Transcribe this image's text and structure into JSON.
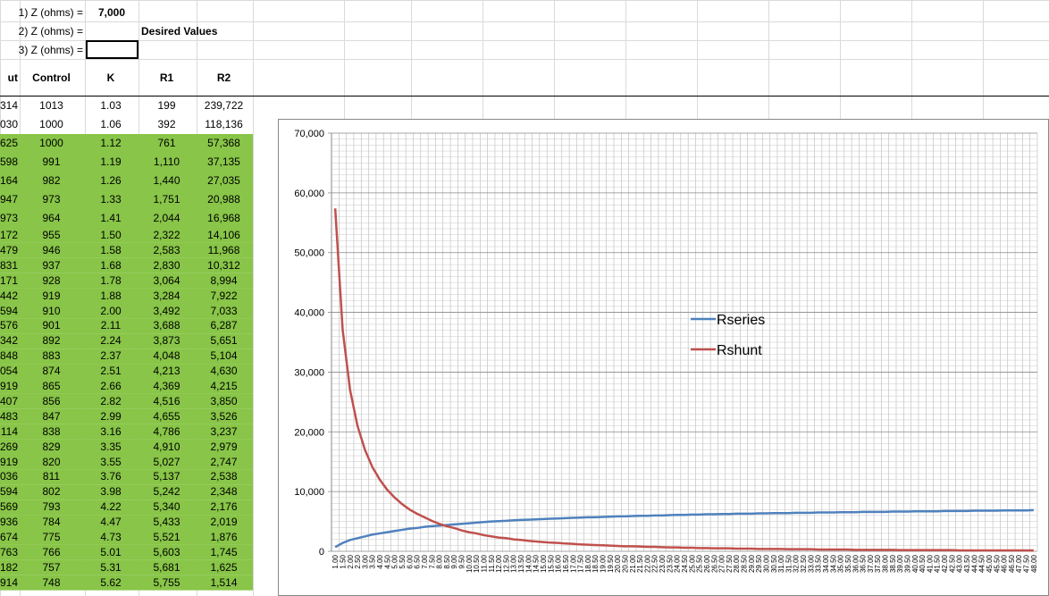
{
  "inputs": [
    {
      "label": "1) Z (ohms) =",
      "value": "7,000"
    },
    {
      "label": "2) Z (ohms) ="
    },
    {
      "label": "3) Z (ohms) ="
    }
  ],
  "desired_values": "Desired Values",
  "table": {
    "headers": [
      "ut",
      "Control",
      "K",
      "R1",
      "R2"
    ],
    "rows": [
      [
        "314",
        "1013",
        "1.03",
        "199",
        "239,722"
      ],
      [
        "030",
        "1000",
        "1.06",
        "392",
        "118,136"
      ],
      [
        "625",
        "1000",
        "1.12",
        "761",
        "57,368"
      ],
      [
        "598",
        "991",
        "1.19",
        "1,110",
        "37,135"
      ],
      [
        "164",
        "982",
        "1.26",
        "1,440",
        "27,035"
      ],
      [
        "947",
        "973",
        "1.33",
        "1,751",
        "20,988"
      ],
      [
        "973",
        "964",
        "1.41",
        "2,044",
        "16,968"
      ],
      [
        "172",
        "955",
        "1.50",
        "2,322",
        "14,106"
      ],
      [
        "479",
        "946",
        "1.58",
        "2,583",
        "11,968"
      ],
      [
        "831",
        "937",
        "1.68",
        "2,830",
        "10,312"
      ],
      [
        "171",
        "928",
        "1.78",
        "3,064",
        "8,994"
      ],
      [
        "442",
        "919",
        "1.88",
        "3,284",
        "7,922"
      ],
      [
        "594",
        "910",
        "2.00",
        "3,492",
        "7,033"
      ],
      [
        "576",
        "901",
        "2.11",
        "3,688",
        "6,287"
      ],
      [
        "342",
        "892",
        "2.24",
        "3,873",
        "5,651"
      ],
      [
        "848",
        "883",
        "2.37",
        "4,048",
        "5,104"
      ],
      [
        "054",
        "874",
        "2.51",
        "4,213",
        "4,630"
      ],
      [
        "919",
        "865",
        "2.66",
        "4,369",
        "4,215"
      ],
      [
        "407",
        "856",
        "2.82",
        "4,516",
        "3,850"
      ],
      [
        "483",
        "847",
        "2.99",
        "4,655",
        "3,526"
      ],
      [
        "114",
        "838",
        "3.16",
        "4,786",
        "3,237"
      ],
      [
        "269",
        "829",
        "3.35",
        "4,910",
        "2,979"
      ],
      [
        "919",
        "820",
        "3.55",
        "5,027",
        "2,747"
      ],
      [
        "036",
        "811",
        "3.76",
        "5,137",
        "2,538"
      ],
      [
        "594",
        "802",
        "3.98",
        "5,242",
        "2,348"
      ],
      [
        "569",
        "793",
        "4.22",
        "5,340",
        "2,176"
      ],
      [
        "936",
        "784",
        "4.47",
        "5,433",
        "2,019"
      ],
      [
        "674",
        "775",
        "4.73",
        "5,521",
        "1,876"
      ],
      [
        "763",
        "766",
        "5.01",
        "5,603",
        "1,745"
      ],
      [
        "182",
        "757",
        "5.31",
        "5,681",
        "1,625"
      ],
      [
        "914",
        "748",
        "5.62",
        "5,755",
        "1,514"
      ]
    ],
    "highlight_color": "#88c548"
  },
  "chart": {
    "type": "line",
    "legend": "right",
    "grid": true,
    "categories": [
      "1.00",
      "1.50",
      "2.00",
      "2.50",
      "3.00",
      "3.50",
      "4.00",
      "4.50",
      "5.00",
      "5.50",
      "6.00",
      "6.50",
      "7.00",
      "7.50",
      "8.00",
      "8.50",
      "9.00",
      "9.50",
      "10.00",
      "10.50",
      "11.00",
      "11.50",
      "12.00",
      "12.50",
      "13.00",
      "13.50",
      "14.00",
      "14.50",
      "15.00",
      "15.50",
      "16.00",
      "16.50",
      "17.00",
      "17.50",
      "18.00",
      "18.50",
      "19.00",
      "19.50",
      "20.00",
      "20.50",
      "21.00",
      "21.50",
      "22.00",
      "22.50",
      "23.00",
      "23.50",
      "24.00",
      "24.50",
      "25.00",
      "25.50",
      "26.00",
      "26.50",
      "27.00",
      "27.50",
      "28.00",
      "28.50",
      "29.00",
      "29.50",
      "30.00",
      "30.50",
      "31.00",
      "31.50",
      "32.00",
      "32.50",
      "33.00",
      "33.50",
      "34.00",
      "34.50",
      "35.00",
      "35.50",
      "36.00",
      "36.50",
      "37.00",
      "37.50",
      "38.00",
      "38.50",
      "39.00",
      "39.50",
      "40.00",
      "40.50",
      "41.00",
      "41.50",
      "42.00",
      "42.50",
      "43.00",
      "43.50",
      "44.00",
      "44.50",
      "45.00",
      "45.50",
      "46.00",
      "46.50",
      "47.00",
      "47.50",
      "48.00"
    ],
    "ylim": [
      0,
      70000
    ],
    "yticks": [
      0,
      {
        "value": 10000,
        "label": "10,000"
      },
      {
        "value": 20000,
        "label": "20,000"
      },
      {
        "value": 30000,
        "label": "30,000"
      },
      {
        "value": 40000,
        "label": "40,000"
      },
      {
        "value": 50000,
        "label": "50,000"
      },
      {
        "value": 60000,
        "label": "60,000"
      },
      {
        "value": 70000,
        "label": "70,000"
      }
    ],
    "series": [
      {
        "name": "Rseries",
        "color": "#4f81bd",
        "values": [
          700,
          1400,
          1900,
          2200,
          2500,
          2800,
          3000,
          3200,
          3400,
          3600,
          3800,
          3900,
          4100,
          4200,
          4300,
          4400,
          4500,
          4600,
          4700,
          4800,
          4900,
          5000,
          5050,
          5100,
          5200,
          5250,
          5300,
          5350,
          5400,
          5450,
          5500,
          5550,
          5600,
          5650,
          5700,
          5700,
          5750,
          5800,
          5850,
          5850,
          5900,
          5950,
          5950,
          6000,
          6000,
          6050,
          6100,
          6100,
          6150,
          6150,
          6200,
          6200,
          6250,
          6250,
          6300,
          6300,
          6300,
          6350,
          6350,
          6400,
          6400,
          6400,
          6450,
          6450,
          6450,
          6500,
          6500,
          6500,
          6550,
          6550,
          6550,
          6600,
          6600,
          6600,
          6600,
          6650,
          6650,
          6650,
          6700,
          6700,
          6700,
          6700,
          6750,
          6750,
          6750,
          6750,
          6800,
          6800,
          6800,
          6800,
          6850,
          6850,
          6850,
          6850,
          6900
        ]
      },
      {
        "name": "Rshunt",
        "color": "#c0504d",
        "values": [
          57400,
          37100,
          27000,
          21000,
          17000,
          14100,
          12000,
          10300,
          9000,
          7900,
          7000,
          6300,
          5700,
          5100,
          4600,
          4200,
          3900,
          3500,
          3200,
          3000,
          2700,
          2500,
          2300,
          2200,
          2000,
          1900,
          1750,
          1650,
          1550,
          1450,
          1400,
          1300,
          1250,
          1150,
          1100,
          1050,
          1000,
          950,
          900,
          850,
          850,
          800,
          750,
          750,
          700,
          650,
          650,
          600,
          600,
          550,
          550,
          500,
          500,
          500,
          450,
          450,
          450,
          400,
          400,
          400,
          400,
          350,
          350,
          350,
          350,
          300,
          300,
          300,
          300,
          300,
          250,
          250,
          250,
          250,
          250,
          250,
          200,
          200,
          200,
          200,
          200,
          200,
          200,
          200,
          150,
          150,
          150,
          150,
          150,
          150,
          150,
          150,
          150,
          150,
          150
        ]
      }
    ]
  }
}
